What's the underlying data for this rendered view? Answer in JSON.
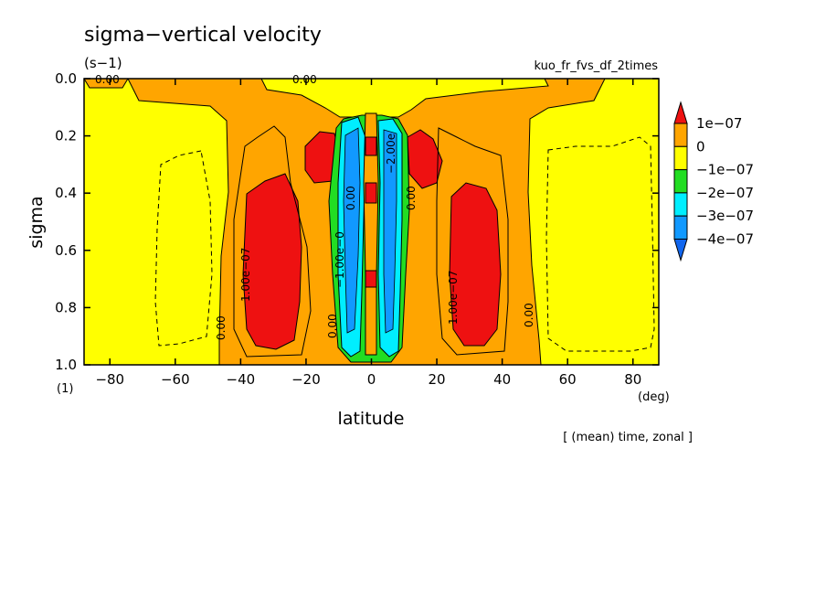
{
  "chart_data": {
    "type": "heatmap",
    "title": "sigma−vertical velocity",
    "units": "(s−1)",
    "experiment": "kuo_fr_fvs_df_2times",
    "xlabel": "latitude",
    "xunit": "(deg)",
    "ylabel": "sigma",
    "yunit": "(1)",
    "footer": "[ (mean) time, zonal ]",
    "xlim": [
      -87.9,
      87.9
    ],
    "ylim": [
      0.0,
      1.0
    ],
    "y_inverted": true,
    "xticks": [
      -80,
      -60,
      -40,
      -20,
      0,
      20,
      40,
      60,
      80
    ],
    "yticks": [
      0.0,
      0.2,
      0.4,
      0.6,
      0.8,
      1.0
    ],
    "xtick_labels": [
      "−80",
      "−60",
      "−40",
      "−20",
      "0",
      "20",
      "40",
      "60",
      "80"
    ],
    "ytick_labels": [
      "0.0",
      "0.2",
      "0.4",
      "0.6",
      "0.8",
      "1.0"
    ],
    "colorbar": {
      "labels": [
        "1e−07",
        "0",
        "−1e−07",
        "−2e−07",
        "−3e−07",
        "−4e−07"
      ],
      "colors": [
        "#ee1111",
        "#ffa500",
        "#ffff00",
        "#22dd22",
        "#00eeff",
        "#1199ff",
        "#1166ee"
      ]
    },
    "contour_labels": [
      "0.00",
      "0.00",
      "0.00",
      "0.00",
      "1.00e−07",
      "1.00e−07",
      "0.00",
      "0.00",
      "−1.00e−0",
      "0.00",
      "−2.00e"
    ],
    "regions": [
      {
        "name": "positive-lobe-south",
        "level": "1e-07",
        "lat_range": [
          -46,
          -22
        ],
        "sigma_range": [
          0.33,
          0.94
        ]
      },
      {
        "name": "positive-lobe-north",
        "level": "1e-07",
        "lat_range": [
          25,
          42
        ],
        "sigma_range": [
          0.38,
          0.93
        ]
      },
      {
        "name": "upward-core",
        "level": "-4e-07",
        "lat_range": [
          -10,
          10
        ],
        "sigma_range": [
          0.15,
          0.95
        ]
      }
    ]
  }
}
